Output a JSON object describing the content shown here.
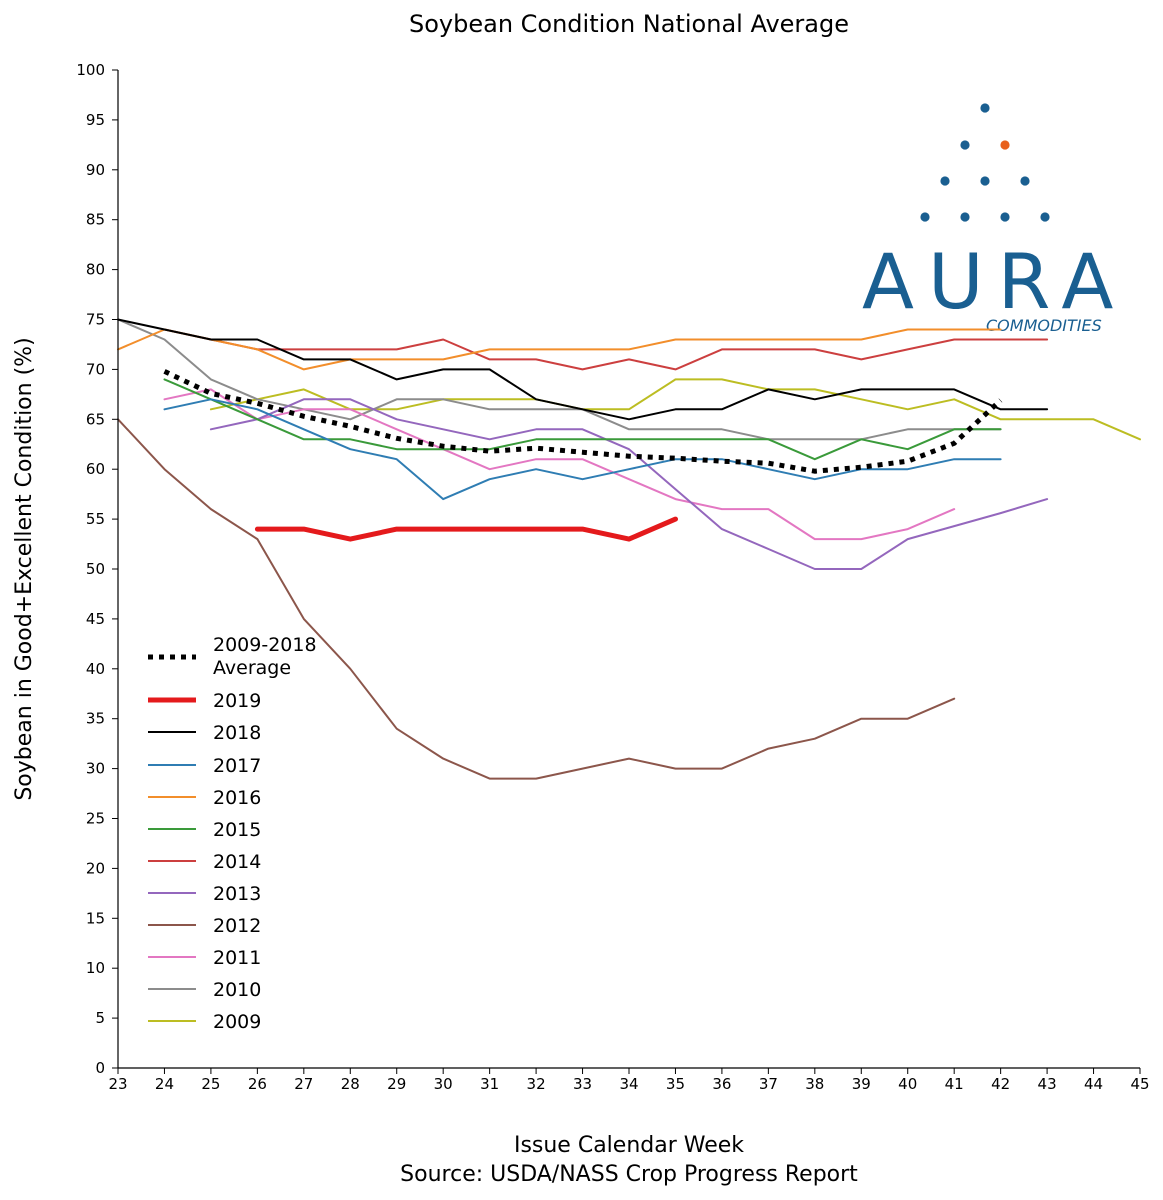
{
  "chart_data": {
    "type": "line",
    "title": "Soybean Condition National Average",
    "xlabel": "Issue Calendar Week",
    "source": "Source: USDA/NASS Crop Progress Report",
    "ylabel": "Soybean in Good+Excellent Condition (%)",
    "xlim": [
      23,
      45
    ],
    "ylim": [
      0,
      100
    ],
    "xticks": [
      23,
      24,
      25,
      26,
      27,
      28,
      29,
      30,
      31,
      32,
      33,
      34,
      35,
      36,
      37,
      38,
      39,
      40,
      41,
      42,
      43,
      44,
      45
    ],
    "yticks": [
      0,
      5,
      10,
      15,
      20,
      25,
      30,
      35,
      40,
      45,
      50,
      55,
      60,
      65,
      70,
      75,
      80,
      85,
      90,
      95,
      100
    ],
    "grid": false,
    "legend_position": "bottom-left",
    "series": [
      {
        "name": "2009-2018 Average",
        "legend_lines": [
          "2009-2018",
          "Average"
        ],
        "color": "#000000",
        "style": "dotted",
        "x": [
          24,
          25,
          26,
          27,
          28,
          29,
          30,
          31,
          32,
          33,
          34,
          35,
          36,
          37,
          38,
          39,
          40,
          41,
          42
        ],
        "y": [
          69.8,
          67.6,
          66.6,
          65.3,
          64.3,
          63.1,
          62.3,
          61.8,
          62.1,
          61.7,
          61.3,
          61.1,
          60.8,
          60.6,
          59.8,
          60.2,
          60.8,
          62.6,
          66.9
        ]
      },
      {
        "name": "2019",
        "color": "#e41a1c",
        "style": "thick",
        "x": [
          26,
          27,
          28,
          29,
          30,
          31,
          32,
          33,
          34,
          35
        ],
        "y": [
          54,
          54,
          53,
          54,
          54,
          54,
          54,
          54,
          53,
          55
        ]
      },
      {
        "name": "2018",
        "color": "#000000",
        "style": "solid",
        "x": [
          23,
          24,
          25,
          26,
          27,
          28,
          29,
          30,
          31,
          32,
          33,
          34,
          35,
          36,
          37,
          38,
          39,
          40,
          41,
          42,
          43
        ],
        "y": [
          75,
          74,
          73,
          73,
          71,
          71,
          69,
          70,
          70,
          67,
          66,
          65,
          66,
          66,
          68,
          67,
          68,
          68,
          68,
          66,
          66
        ]
      },
      {
        "name": "2017",
        "color": "#2f7db3",
        "style": "solid",
        "x": [
          24,
          25,
          26,
          27,
          28,
          29,
          30,
          31,
          32,
          33,
          34,
          35,
          36,
          37,
          38,
          39,
          40,
          41,
          42
        ],
        "y": [
          66,
          67,
          66,
          64,
          62,
          61,
          57,
          59,
          60,
          59,
          60,
          61,
          61,
          60,
          59,
          60,
          60,
          61,
          61
        ]
      },
      {
        "name": "2016",
        "color": "#f28e2b",
        "style": "solid",
        "x": [
          23,
          24,
          25,
          26,
          27,
          28,
          29,
          30,
          31,
          32,
          33,
          34,
          35,
          36,
          37,
          38,
          39,
          40,
          41,
          42
        ],
        "y": [
          72,
          74,
          73,
          72,
          70,
          71,
          71,
          71,
          72,
          72,
          72,
          72,
          73,
          73,
          73,
          73,
          73,
          74,
          74,
          74
        ]
      },
      {
        "name": "2015",
        "color": "#3a9a3a",
        "style": "solid",
        "x": [
          24,
          25,
          26,
          27,
          28,
          29,
          30,
          31,
          32,
          33,
          34,
          35,
          36,
          37,
          38,
          39,
          40,
          41,
          42
        ],
        "y": [
          69,
          67,
          65,
          63,
          63,
          62,
          62,
          62,
          63,
          63,
          63,
          63,
          63,
          63,
          61,
          63,
          62,
          64,
          64
        ]
      },
      {
        "name": "2014",
        "color": "#cc3f3f",
        "style": "solid",
        "x": [
          24,
          25,
          26,
          27,
          28,
          29,
          30,
          31,
          32,
          33,
          34,
          35,
          36,
          37,
          38,
          39,
          40,
          41,
          42,
          43
        ],
        "y": [
          74,
          73,
          72,
          72,
          72,
          72,
          73,
          71,
          71,
          70,
          71,
          70,
          72,
          72,
          72,
          71,
          72,
          73,
          73,
          73
        ]
      },
      {
        "name": "2013",
        "color": "#9467bd",
        "style": "solid",
        "x": [
          25,
          26,
          27,
          28,
          29,
          30,
          31,
          32,
          33,
          34,
          35,
          36,
          37,
          38,
          39,
          40,
          41,
          42,
          43
        ],
        "y": [
          64,
          65,
          67,
          67,
          65,
          64,
          63,
          64,
          64,
          62,
          58,
          54,
          52,
          50,
          50,
          53,
          54.3,
          55.6,
          57
        ]
      },
      {
        "name": "2012",
        "color": "#8c564b",
        "style": "solid",
        "x": [
          23,
          24,
          25,
          26,
          27,
          28,
          29,
          30,
          31,
          32,
          33,
          34,
          35,
          36,
          37,
          38,
          39,
          40,
          41
        ],
        "y": [
          65,
          60,
          56,
          53,
          45,
          40,
          34,
          31,
          29,
          29,
          30,
          31,
          30,
          30,
          32,
          33,
          35,
          35,
          37
        ]
      },
      {
        "name": "2011",
        "color": "#e377c2",
        "style": "solid",
        "x": [
          24,
          25,
          26,
          27,
          28,
          29,
          30,
          31,
          32,
          33,
          34,
          35,
          36,
          37,
          38,
          39,
          40,
          41
        ],
        "y": [
          67,
          68,
          65,
          66,
          66,
          64,
          62,
          60,
          61,
          61,
          59,
          57,
          56,
          56,
          53,
          53,
          54,
          56
        ]
      },
      {
        "name": "2010",
        "color": "#8c8c8c",
        "style": "solid",
        "x": [
          23,
          24,
          25,
          26,
          27,
          28,
          29,
          30,
          31,
          32,
          33,
          34,
          35,
          36,
          37,
          38,
          39,
          40,
          41,
          42
        ],
        "y": [
          75,
          73,
          69,
          67,
          66,
          65,
          67,
          67,
          66,
          66,
          66,
          64,
          64,
          64,
          63,
          63,
          63,
          64,
          64,
          64
        ]
      },
      {
        "name": "2009",
        "color": "#bcbd22",
        "style": "solid",
        "x": [
          25,
          26,
          27,
          28,
          29,
          30,
          31,
          32,
          33,
          34,
          35,
          36,
          37,
          38,
          39,
          40,
          41,
          42,
          43,
          44,
          45
        ],
        "y": [
          66,
          67,
          68,
          66,
          66,
          67,
          67,
          67,
          66,
          66,
          69,
          69,
          68,
          68,
          67,
          66,
          67,
          65,
          65,
          65,
          63
        ]
      }
    ]
  },
  "logo": {
    "text": "AURA",
    "subtext": "COMMODITIES",
    "dot_color": "#1a5f91",
    "accent_dot_color": "#e8601c"
  }
}
